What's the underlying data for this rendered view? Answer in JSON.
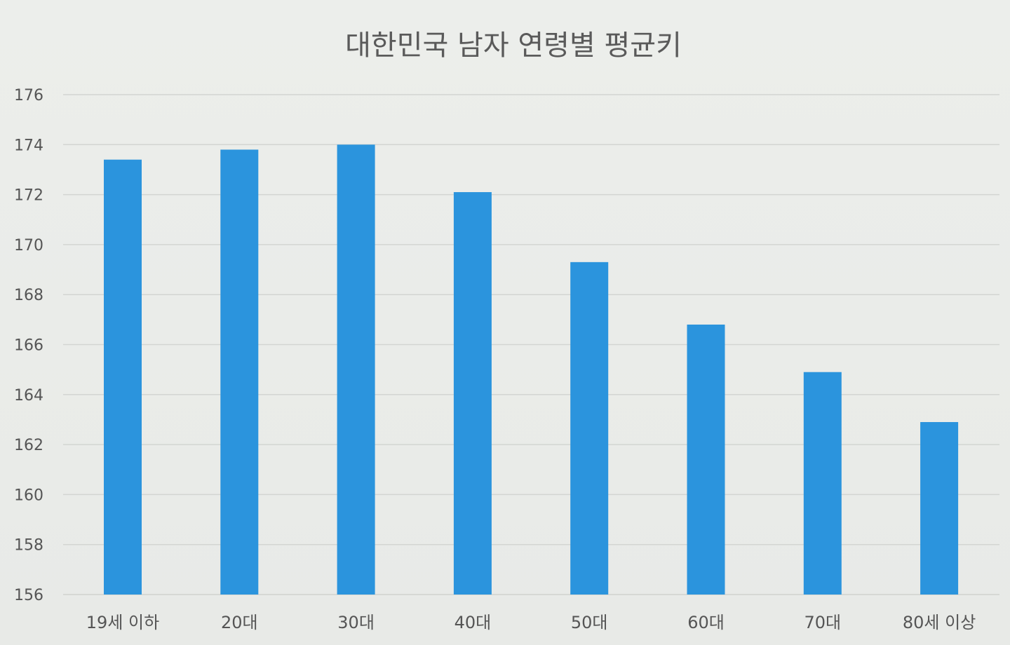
{
  "chart_data": {
    "type": "bar",
    "title": "대한민국 남자 연령별 평균키",
    "xlabel": "",
    "ylabel": "",
    "categories": [
      "19세 이하",
      "20대",
      "30대",
      "40대",
      "50대",
      "60대",
      "70대",
      "80세 이상"
    ],
    "series": [
      {
        "values": [
          173.4,
          173.8,
          174.0,
          172.1,
          169.3,
          166.8,
          164.9,
          162.9
        ],
        "color": "#2b94dd"
      }
    ],
    "ylim": [
      156,
      176
    ],
    "yticks": [
      "176",
      "174",
      "172",
      "170",
      "168",
      "166",
      "164",
      "162",
      "160",
      "158",
      "156"
    ],
    "grid": true,
    "legend": "none"
  }
}
